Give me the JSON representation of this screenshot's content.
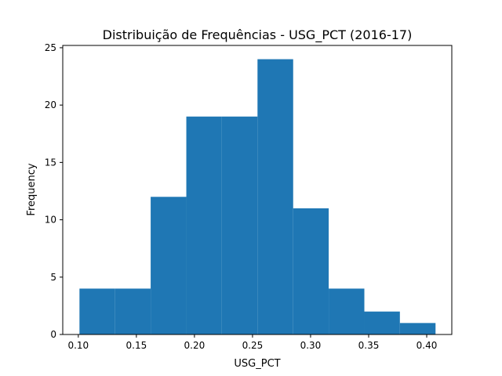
{
  "chart_data": {
    "type": "bar",
    "title": "Distribuição de Frequências - USG_PCT (2016-17)",
    "xlabel": "USG_PCT",
    "ylabel": "Frequency",
    "xlim": [
      0.0866,
      0.4216
    ],
    "ylim": [
      0,
      25.2
    ],
    "bins": [
      {
        "start": 0.101,
        "end": 0.1317,
        "count": 4
      },
      {
        "start": 0.1317,
        "end": 0.1623,
        "count": 4
      },
      {
        "start": 0.1623,
        "end": 0.193,
        "count": 12
      },
      {
        "start": 0.193,
        "end": 0.2236,
        "count": 19
      },
      {
        "start": 0.2236,
        "end": 0.2543,
        "count": 19
      },
      {
        "start": 0.2543,
        "end": 0.285,
        "count": 24
      },
      {
        "start": 0.285,
        "end": 0.3156,
        "count": 11
      },
      {
        "start": 0.3156,
        "end": 0.3463,
        "count": 4
      },
      {
        "start": 0.3463,
        "end": 0.3769,
        "count": 2
      },
      {
        "start": 0.3769,
        "end": 0.4076,
        "count": 1
      }
    ],
    "x_ticks": [
      0.1,
      0.15,
      0.2,
      0.25,
      0.3,
      0.35,
      0.4
    ],
    "x_tick_labels": [
      "0.10",
      "0.15",
      "0.20",
      "0.25",
      "0.30",
      "0.35",
      "0.40"
    ],
    "y_ticks": [
      0,
      5,
      10,
      15,
      20,
      25
    ],
    "y_tick_labels": [
      "0",
      "5",
      "10",
      "15",
      "20",
      "25"
    ],
    "grid": false,
    "bar_color": "#1f77b4"
  }
}
